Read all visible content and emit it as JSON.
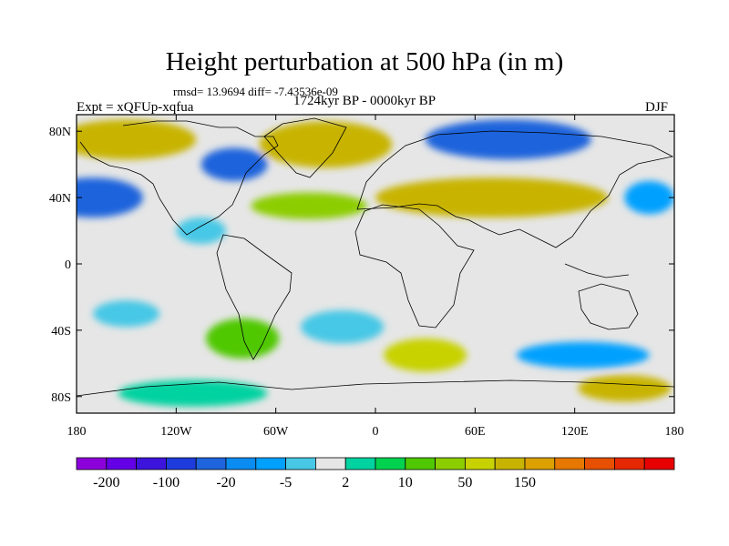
{
  "figure": {
    "title": "Height perturbation at 500 hPa (in m)",
    "stats": "rmsd= 13.9694 diff= -7.43536e-09",
    "experiment": "Expt = xQFUp-xqfua",
    "period": "1724kyr BP - 0000kyr BP",
    "season": "DJF"
  },
  "map": {
    "projection": "cylindrical-equidistant",
    "lon_range": [
      -180,
      180
    ],
    "lat_range": [
      -90,
      90
    ],
    "x_ticks": [
      {
        "lon": -180,
        "label": "180"
      },
      {
        "lon": -120,
        "label": "120W"
      },
      {
        "lon": -60,
        "label": "60W"
      },
      {
        "lon": 0,
        "label": "0"
      },
      {
        "lon": 60,
        "label": "60E"
      },
      {
        "lon": 120,
        "label": "120E"
      },
      {
        "lon": 180,
        "label": "180"
      }
    ],
    "y_ticks": [
      {
        "lat": 80,
        "label": "80N"
      },
      {
        "lat": 40,
        "label": "40N"
      },
      {
        "lat": 0,
        "label": "0"
      },
      {
        "lat": -40,
        "label": "40S"
      },
      {
        "lat": -80,
        "label": "80S"
      }
    ],
    "neutral_color": "#e6e6e6",
    "anomalies": [
      {
        "lon": -30,
        "lat": 72,
        "rx": 40,
        "ry": 14,
        "color": "#c8b400"
      },
      {
        "lon": -150,
        "lat": 75,
        "rx": 42,
        "ry": 12,
        "color": "#c8b400"
      },
      {
        "lon": -85,
        "lat": 60,
        "rx": 20,
        "ry": 10,
        "color": "#1e64dc"
      },
      {
        "lon": -170,
        "lat": 40,
        "rx": 30,
        "ry": 12,
        "color": "#1e64dc"
      },
      {
        "lon": 80,
        "lat": 75,
        "rx": 50,
        "ry": 12,
        "color": "#1e64dc"
      },
      {
        "lon": 70,
        "lat": 40,
        "rx": 70,
        "ry": 12,
        "color": "#c8b400"
      },
      {
        "lon": -40,
        "lat": 35,
        "rx": 35,
        "ry": 8,
        "color": "#8ccd00"
      },
      {
        "lon": 165,
        "lat": 40,
        "rx": 15,
        "ry": 10,
        "color": "#00a0ff"
      },
      {
        "lon": -105,
        "lat": 20,
        "rx": 15,
        "ry": 8,
        "color": "#46c8e6"
      },
      {
        "lon": 30,
        "lat": -55,
        "rx": 25,
        "ry": 10,
        "color": "#c8d200"
      },
      {
        "lon": -80,
        "lat": -45,
        "rx": 22,
        "ry": 12,
        "color": "#50c800"
      },
      {
        "lon": 125,
        "lat": -55,
        "rx": 40,
        "ry": 8,
        "color": "#00a0ff"
      },
      {
        "lon": -150,
        "lat": -30,
        "rx": 20,
        "ry": 8,
        "color": "#46c8e6"
      },
      {
        "lon": 150,
        "lat": -75,
        "rx": 28,
        "ry": 8,
        "color": "#c8b400"
      },
      {
        "lon": -110,
        "lat": -78,
        "rx": 45,
        "ry": 8,
        "color": "#00d2a0"
      },
      {
        "lon": -20,
        "lat": -38,
        "rx": 25,
        "ry": 10,
        "color": "#46c8e6"
      }
    ]
  },
  "colorbar": {
    "colors": [
      "#8c00dc",
      "#6400e6",
      "#3c14dc",
      "#1e3cdc",
      "#1e64dc",
      "#0a8cf0",
      "#00a0ff",
      "#46c8e6",
      "#e6e6e6",
      "#00d2a0",
      "#00d250",
      "#50c800",
      "#8ccd00",
      "#c8d200",
      "#c8b400",
      "#dca000",
      "#e67800",
      "#e65000",
      "#e62800",
      "#e60000"
    ],
    "labels": [
      {
        "index": 1,
        "label": "-200"
      },
      {
        "index": 3,
        "label": "-100"
      },
      {
        "index": 5,
        "label": "-20"
      },
      {
        "index": 7,
        "label": "-5"
      },
      {
        "index": 9,
        "label": "2"
      },
      {
        "index": 11,
        "label": "10"
      },
      {
        "index": 13,
        "label": "50"
      },
      {
        "index": 15,
        "label": "150"
      }
    ]
  }
}
